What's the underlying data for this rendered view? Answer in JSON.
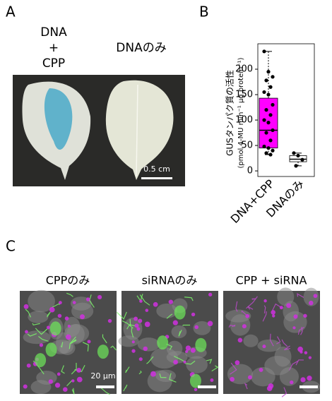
{
  "panel_labels": [
    "A",
    "B",
    "C"
  ],
  "panel_a": {
    "treatment_lines": [
      "DNA",
      "+",
      "CPP"
    ],
    "control": "DNAのみ",
    "scale_bar": "0.5 cm"
  },
  "chart_data": {
    "type": "box",
    "y_label": [
      "GUSタンパク質の活性",
      "(pmol 4-MU min⁻¹ µg protein⁻¹)"
    ],
    "categories": [
      "DNA+CPP",
      "DNAのみ"
    ],
    "boxes": [
      {
        "min": 32,
        "q1": 45,
        "median": 80,
        "q3": 143,
        "max": 235,
        "color": "#ff00ff"
      },
      {
        "min": 10,
        "q1": 18,
        "median": 23,
        "q3": 30,
        "max": 35,
        "color": "#ffffff"
      }
    ],
    "points": [
      [
        235,
        195,
        185,
        178,
        165,
        155,
        150,
        130,
        120,
        110,
        100,
        95,
        80,
        75,
        60,
        48,
        45,
        40,
        35,
        32
      ],
      [
        35,
        30,
        22,
        10
      ]
    ],
    "ylim": [
      -11,
      250
    ],
    "yticks": [
      0,
      50,
      100,
      150,
      200
    ]
  },
  "panel_c": {
    "titles": [
      "CPPのみ",
      "siRNAのみ",
      "CPP + siRNA"
    ],
    "scale_bar": "20 µm"
  }
}
